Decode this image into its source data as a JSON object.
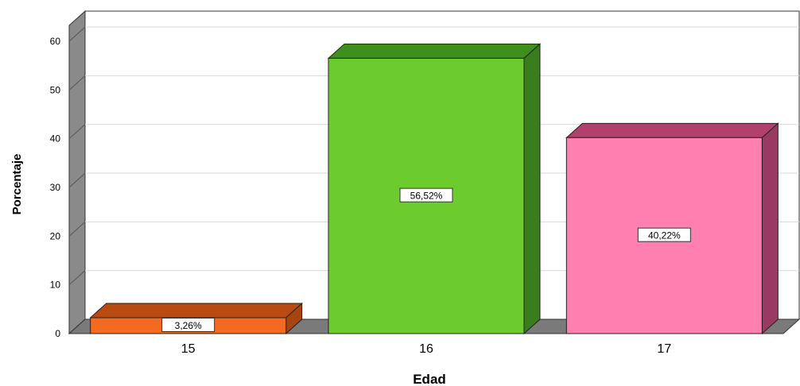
{
  "chart_data": {
    "type": "bar",
    "title": "",
    "xlabel": "Edad",
    "ylabel": "Porcentaje",
    "categories": [
      "15",
      "16",
      "17"
    ],
    "values": [
      3.26,
      56.52,
      40.22
    ],
    "data_labels": [
      "3,26%",
      "56,52%",
      "40,22%"
    ],
    "ylim": [
      0,
      60
    ],
    "yticks": [
      "0",
      "10",
      "20",
      "30",
      "40",
      "50",
      "60"
    ],
    "grid": true,
    "legend": "none",
    "style": "3d",
    "colors": {
      "bars": [
        "#f26b21",
        "#6ccc2e",
        "#ff7fb0"
      ],
      "bar_tops": [
        "#b84a12",
        "#3f8f1c",
        "#b0416e"
      ],
      "bar_sides": [
        "#a84410",
        "#3a7d1c",
        "#9a3a62"
      ],
      "walls": "#8a8a8a",
      "floor": "#7a7a7a",
      "grid": "#d8d8d8"
    }
  }
}
